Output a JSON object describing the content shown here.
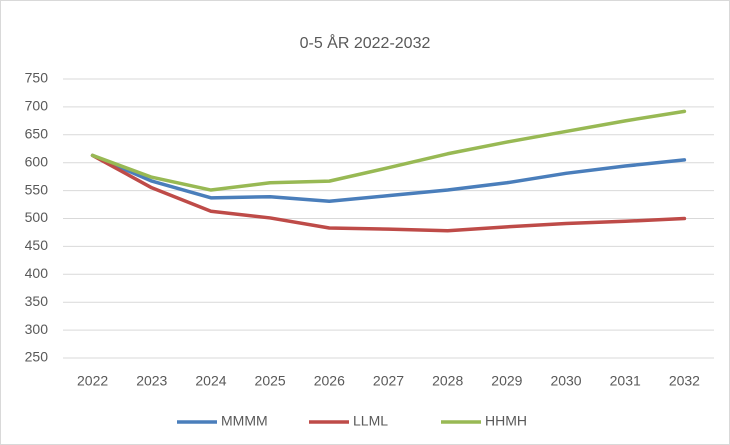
{
  "chart_data": {
    "type": "line",
    "title": "0-5 ÅR 2022-2032",
    "categories": [
      "2022",
      "2023",
      "2024",
      "2025",
      "2026",
      "2027",
      "2028",
      "2029",
      "2030",
      "2031",
      "2032"
    ],
    "series": [
      {
        "name": "MMMM",
        "color": "#4a7ebb",
        "values": [
          613,
          567,
          537,
          539,
          531,
          541,
          551,
          564,
          581,
          594,
          605
        ]
      },
      {
        "name": "LLML",
        "color": "#be4b48",
        "values": [
          613,
          555,
          513,
          501,
          483,
          481,
          478,
          485,
          491,
          495,
          500
        ]
      },
      {
        "name": "HHMH",
        "color": "#98b954",
        "values": [
          613,
          574,
          551,
          564,
          567,
          591,
          616,
          637,
          656,
          675,
          692
        ]
      }
    ],
    "ylim": [
      250,
      750
    ],
    "yticks": [
      250,
      300,
      350,
      400,
      450,
      500,
      550,
      600,
      650,
      700,
      750
    ],
    "grid": true,
    "legend": "bottom"
  }
}
